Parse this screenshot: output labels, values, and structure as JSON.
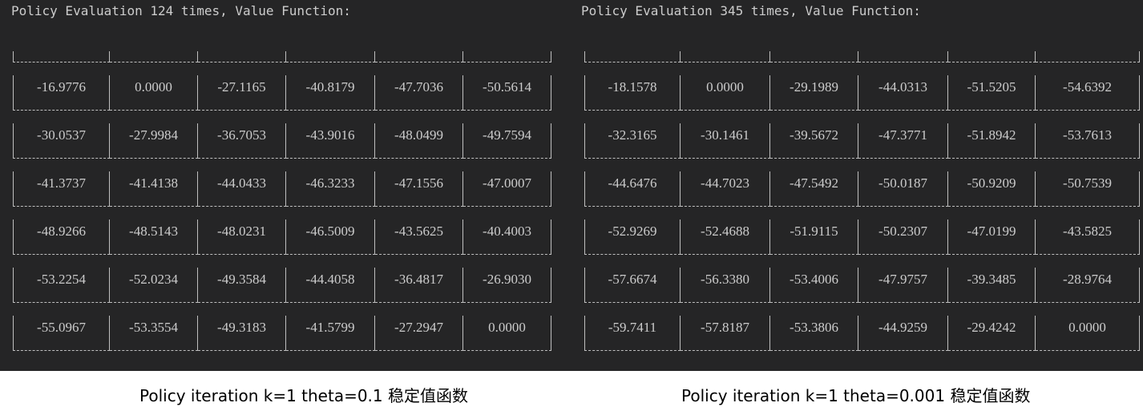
{
  "left": {
    "header": "Policy Evaluation 124 times, Value Function:",
    "rows": [
      [
        "-16.9776",
        "0.0000",
        "-27.1165",
        "-40.8179",
        "-47.7036",
        "-50.5614"
      ],
      [
        "-30.0537",
        "-27.9984",
        "-36.7053",
        "-43.9016",
        "-48.0499",
        "-49.7594"
      ],
      [
        "-41.3737",
        "-41.4138",
        "-44.0433",
        "-46.3233",
        "-47.1556",
        "-47.0007"
      ],
      [
        "-48.9266",
        "-48.5143",
        "-48.0231",
        "-46.5009",
        "-43.5625",
        "-40.4003"
      ],
      [
        "-53.2254",
        "-52.0234",
        "-49.3584",
        "-44.4058",
        "-36.4817",
        "-26.9030"
      ],
      [
        "-55.0967",
        "-53.3554",
        "-49.3183",
        "-41.5799",
        "-27.2947",
        "0.0000"
      ]
    ],
    "caption": "Policy iteration k=1 theta=0.1 稳定值函数"
  },
  "right": {
    "header": "Policy Evaluation 345 times, Value Function:",
    "rows": [
      [
        "-18.1578",
        "0.0000",
        "-29.1989",
        "-44.0313",
        "-51.5205",
        "-54.6392"
      ],
      [
        "-32.3165",
        "-30.1461",
        "-39.5672",
        "-47.3771",
        "-51.8942",
        "-53.7613"
      ],
      [
        "-44.6476",
        "-44.7023",
        "-47.5492",
        "-50.0187",
        "-50.9209",
        "-50.7539"
      ],
      [
        "-52.9269",
        "-52.4688",
        "-51.9115",
        "-50.2307",
        "-47.0199",
        "-43.5825"
      ],
      [
        "-57.6674",
        "-56.3380",
        "-53.4006",
        "-47.9757",
        "-39.3485",
        "-28.9764"
      ],
      [
        "-59.7411",
        "-57.8187",
        "-53.3806",
        "-44.9259",
        "-29.4242",
        "0.0000"
      ]
    ],
    "caption": "Policy iteration k=1 theta=0.001 稳定值函数"
  }
}
